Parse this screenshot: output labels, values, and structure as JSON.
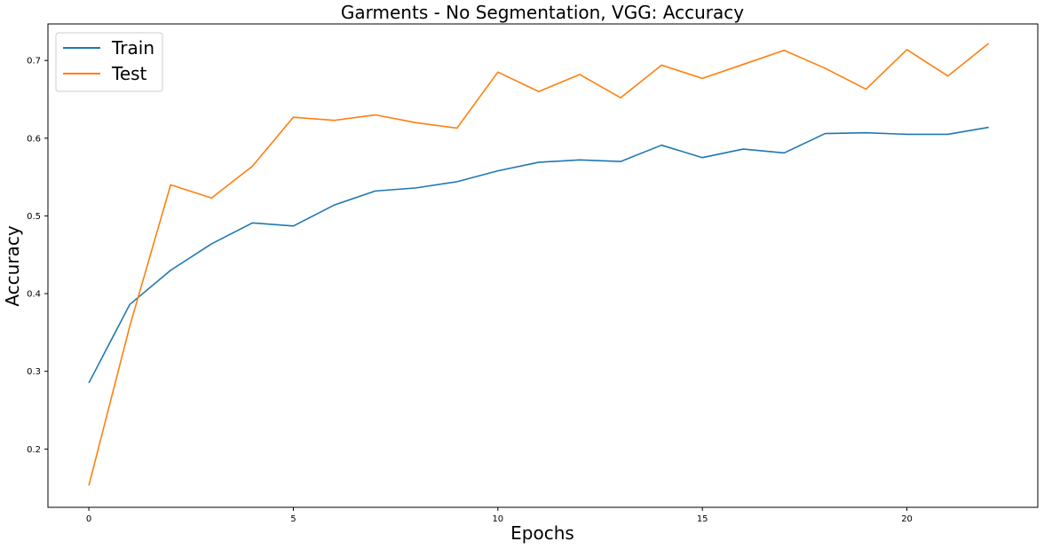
{
  "chart_data": {
    "type": "line",
    "title": "Garments - No Segmentation, VGG: Accuracy",
    "xlabel": "Epochs",
    "ylabel": "Accuracy",
    "xlim": [
      -1,
      23.2
    ],
    "ylim": [
      0.125,
      0.747
    ],
    "xticks": [
      0,
      5,
      10,
      15,
      20
    ],
    "yticks": [
      0.2,
      0.3,
      0.4,
      0.5,
      0.6,
      0.7
    ],
    "x": [
      0,
      1,
      2,
      3,
      4,
      5,
      6,
      7,
      8,
      9,
      10,
      11,
      12,
      13,
      14,
      15,
      16,
      17,
      18,
      19,
      20,
      21,
      22
    ],
    "grid": false,
    "legend_position": "upper-left",
    "series": [
      {
        "name": "Train",
        "color": "#1f77b4",
        "values": [
          0.285,
          0.386,
          0.43,
          0.464,
          0.491,
          0.487,
          0.514,
          0.532,
          0.536,
          0.544,
          0.558,
          0.569,
          0.572,
          0.57,
          0.591,
          0.575,
          0.586,
          0.581,
          0.606,
          0.607,
          0.605,
          0.605,
          0.614
        ]
      },
      {
        "name": "Test",
        "color": "#ff7f0e",
        "values": [
          0.153,
          0.358,
          0.54,
          0.523,
          0.564,
          0.627,
          0.623,
          0.63,
          0.62,
          0.613,
          0.685,
          0.66,
          0.682,
          0.652,
          0.694,
          0.677,
          0.695,
          0.713,
          0.69,
          0.663,
          0.714,
          0.68,
          0.722
        ]
      }
    ]
  }
}
